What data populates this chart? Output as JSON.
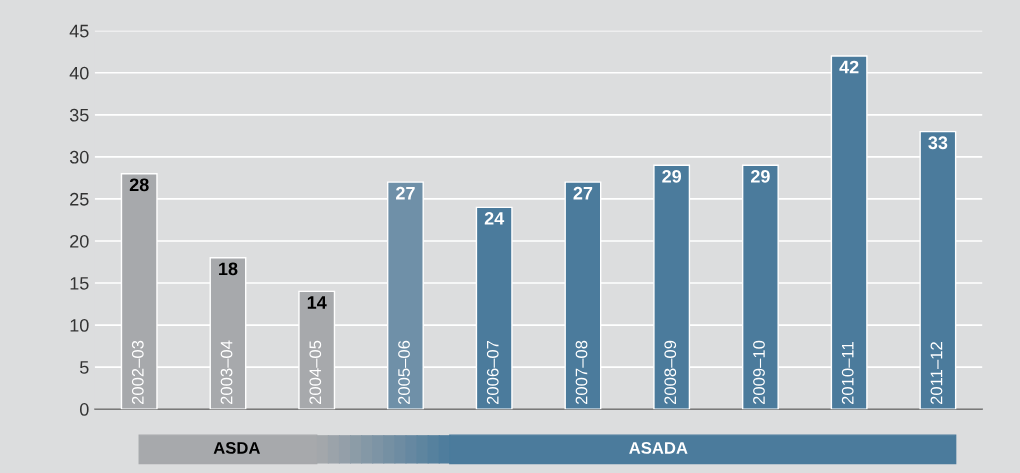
{
  "chart_data": {
    "type": "bar",
    "categories": [
      "2002–03",
      "2003–04",
      "2004–05",
      "2005–06",
      "2006–07",
      "2007–08",
      "2008–09",
      "2009–10",
      "2010–11",
      "2011–12"
    ],
    "values": [
      28,
      18,
      14,
      27,
      24,
      27,
      29,
      29,
      42,
      33
    ],
    "colors": [
      "#a7a9ac",
      "#a7a9ac",
      "#a7a9ac",
      "#6f90a8",
      "#4b7b9c",
      "#4b7b9c",
      "#4b7b9c",
      "#4b7b9c",
      "#4b7b9c",
      "#4b7b9c"
    ],
    "ylim": [
      0,
      45
    ],
    "yticks": [
      0,
      5,
      10,
      15,
      20,
      25,
      30,
      35,
      40,
      45
    ],
    "grid": "y",
    "data_labels": true,
    "annotations": [
      "ASDA",
      "ASADA"
    ]
  }
}
